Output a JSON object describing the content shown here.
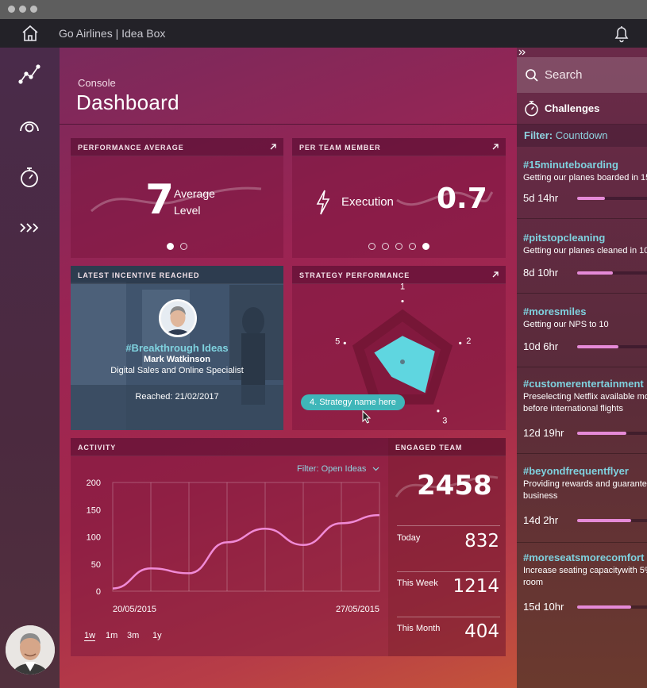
{
  "app": {
    "title": "Go Airlines | Idea Box"
  },
  "header": {
    "section": "Console",
    "title": "Dashboard"
  },
  "cards": {
    "performance": {
      "title": "PERFORMANCE AVERAGE",
      "value": "7",
      "label_line1": "Average",
      "label_line2": "Level",
      "page": 1,
      "pages": 2
    },
    "per_team": {
      "title": "PER TEAM MEMBER",
      "label": "Execution",
      "value": "0.7",
      "page": 5,
      "pages": 5
    },
    "incentive": {
      "title": "LATEST INCENTIVE REACHED",
      "tag": "#Breakthrough Ideas",
      "name": "Mark Watkinson",
      "role": "Digital Sales and Online Specialist",
      "reached": "Reached: 21/02/2017"
    },
    "strategy": {
      "title": "STRATEGY PERFORMANCE",
      "tooltip": "4. Strategy name here",
      "axes": [
        "1",
        "2",
        "3",
        "4",
        "5"
      ],
      "values": [
        0.42,
        0.55,
        0.62,
        0.3,
        0.48
      ]
    },
    "activity": {
      "title": "ACTIVITY",
      "filter_label": "Filter:",
      "filter_value": "Open Ideas",
      "ranges": [
        "1w",
        "1m",
        "3m",
        "1y"
      ],
      "active_range": "1w"
    },
    "engaged": {
      "title": "ENGAGED TEAM",
      "total": "2458",
      "rows": [
        {
          "label": "Today",
          "value": "832"
        },
        {
          "label": "This Week",
          "value": "1214"
        },
        {
          "label": "This Month",
          "value": "404"
        }
      ]
    }
  },
  "chart_data": {
    "type": "line",
    "x": [
      0,
      1,
      2,
      3,
      4,
      5,
      6,
      7
    ],
    "x_tick_labels": [
      "20/05/2015",
      "27/05/2015"
    ],
    "series": [
      {
        "values": [
          5,
          42,
          33,
          90,
          115,
          85,
          125,
          140
        ]
      }
    ],
    "ylim": [
      0,
      200
    ],
    "y_ticks": [
      0,
      50,
      100,
      150,
      200
    ],
    "grid": true,
    "color": "#f08ad6"
  },
  "sidebar": {
    "search": "Search",
    "challenges": "Challenges",
    "filter_label": "Filter:",
    "filter_value": "Countdown",
    "items": [
      {
        "tag": "#15minuteboarding",
        "desc": "Getting our planes boarded in 15",
        "time": "5d 14hr",
        "progress": 0.35
      },
      {
        "tag": "#pitstopcleaning",
        "desc": "Getting our planes cleaned in 10",
        "time": "8d 10hr",
        "progress": 0.45
      },
      {
        "tag": "#moresmiles",
        "desc": "Getting our NPS to 10",
        "time": "10d 6hr",
        "progress": 0.52
      },
      {
        "tag": "#customerentertainment",
        "desc": "Preselecting Netflix available mo\nbefore international flights",
        "time": "12d 19hr",
        "progress": 0.62
      },
      {
        "tag": "#beyondfrequentflyer",
        "desc": "Providing rewards and guarantee\nbusiness",
        "time": "14d 2hr",
        "progress": 0.68
      },
      {
        "tag": "#moreseatsmorecomfort",
        "desc": "Increase seating capacitywith 5%\nroom",
        "time": "15d 10hr",
        "progress": 0.68
      }
    ]
  },
  "colors": {
    "accent_teal": "#3fb6b9",
    "tag_blue": "#7fd2df",
    "progress_pink": "#e58ad7"
  }
}
